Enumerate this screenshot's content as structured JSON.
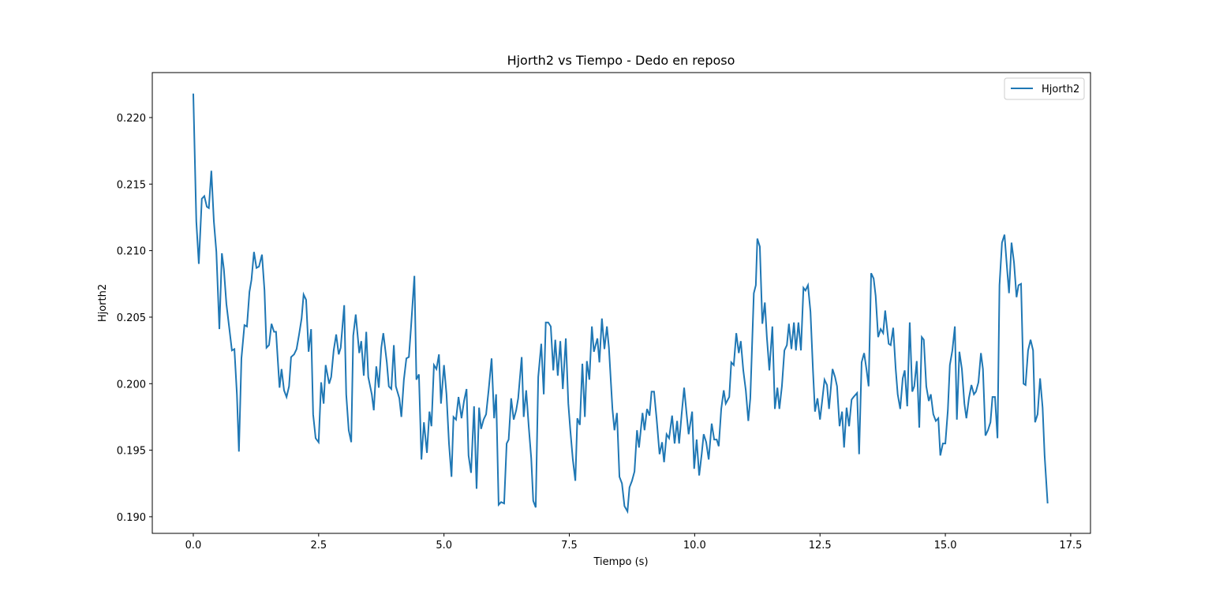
{
  "chart_data": {
    "type": "line",
    "title": "Hjorth2 vs Tiempo - Dedo en reposo",
    "xlabel": "Tiempo (s)",
    "ylabel": "Hjorth2",
    "legend": "upper right",
    "xlim": [
      -0.818,
      17.895
    ],
    "ylim": [
      0.18875,
      0.22338
    ],
    "xticks": [
      {
        "value": 0,
        "label": "0.0"
      },
      2.5,
      {
        "value": 5,
        "label": "5.0"
      },
      7.5,
      {
        "value": 10,
        "label": "10.0"
      },
      12.5,
      {
        "value": 15,
        "label": "15.0"
      },
      17.5
    ],
    "yticks": [
      {
        "value": 0.19,
        "label": "0.190"
      },
      0.195,
      {
        "value": 0.2,
        "label": "0.200"
      },
      0.205,
      {
        "value": 0.21,
        "label": "0.210"
      },
      0.215,
      {
        "value": 0.22,
        "label": "0.220"
      }
    ],
    "x": [
      0,
      0.06,
      0.11,
      0.17,
      0.22,
      0.27,
      0.31,
      0.36,
      0.41,
      0.46,
      0.52,
      0.57,
      0.61,
      0.66,
      0.72,
      0.77,
      0.82,
      0.87,
      0.91,
      0.96,
      1.02,
      1.07,
      1.12,
      1.16,
      1.21,
      1.26,
      1.31,
      1.37,
      1.42,
      1.46,
      1.51,
      1.56,
      1.61,
      1.65,
      1.72,
      1.76,
      1.81,
      1.86,
      1.91,
      1.95,
      2.01,
      2.06,
      2.11,
      2.16,
      2.2,
      2.25,
      2.3,
      2.35,
      2.39,
      2.44,
      2.5,
      2.55,
      2.6,
      2.64,
      2.71,
      2.75,
      2.8,
      2.85,
      2.9,
      2.94,
      3.01,
      3.05,
      3.1,
      3.15,
      3.19,
      3.24,
      3.31,
      3.35,
      3.4,
      3.45,
      3.49,
      3.56,
      3.6,
      3.65,
      3.7,
      3.75,
      3.79,
      3.86,
      3.9,
      3.95,
      4,
      4.04,
      4.11,
      4.15,
      4.2,
      4.25,
      4.3,
      4.34,
      4.41,
      4.45,
      4.5,
      4.55,
      4.6,
      4.66,
      4.71,
      4.75,
      4.8,
      4.85,
      4.9,
      4.94,
      5,
      5.05,
      5.1,
      5.15,
      5.19,
      5.24,
      5.29,
      5.35,
      5.4,
      5.45,
      5.49,
      5.54,
      5.6,
      5.65,
      5.7,
      5.74,
      5.79,
      5.84,
      5.89,
      5.95,
      6,
      6.04,
      6.09,
      6.14,
      6.2,
      6.25,
      6.29,
      6.34,
      6.39,
      6.44,
      6.48,
      6.55,
      6.59,
      6.64,
      6.69,
      6.74,
      6.78,
      6.83,
      6.88,
      6.94,
      6.99,
      7.03,
      7.08,
      7.13,
      7.18,
      7.22,
      7.27,
      7.32,
      7.37,
      7.43,
      7.48,
      7.52,
      7.57,
      7.62,
      7.66,
      7.71,
      7.76,
      7.81,
      7.85,
      7.9,
      7.95,
      7.99,
      8.06,
      8.1,
      8.15,
      8.2,
      8.25,
      8.29,
      8.36,
      8.4,
      8.45,
      8.5,
      8.55,
      8.6,
      8.66,
      8.7,
      8.75,
      8.8,
      8.85,
      8.89,
      8.96,
      9,
      9.05,
      9.1,
      9.14,
      9.19,
      9.24,
      9.3,
      9.35,
      9.39,
      9.44,
      9.49,
      9.55,
      9.6,
      9.65,
      9.69,
      9.74,
      9.79,
      9.84,
      9.88,
      9.95,
      9.99,
      10.04,
      10.09,
      10.14,
      10.18,
      10.23,
      10.28,
      10.34,
      10.39,
      10.44,
      10.48,
      10.53,
      10.58,
      10.62,
      10.69,
      10.73,
      10.78,
      10.83,
      10.88,
      10.92,
      10.97,
      11.02,
      11.07,
      11.11,
      11.18,
      11.22,
      11.25,
      11.3,
      11.35,
      11.4,
      11.44,
      11.49,
      11.55,
      11.6,
      11.65,
      11.69,
      11.74,
      11.79,
      11.84,
      11.88,
      11.93,
      11.98,
      12.02,
      12.07,
      12.12,
      12.17,
      12.21,
      12.26,
      12.31,
      12.36,
      12.4,
      12.45,
      12.5,
      12.54,
      12.59,
      12.64,
      12.68,
      12.75,
      12.8,
      12.84,
      12.89,
      12.94,
      12.98,
      13.03,
      13.08,
      13.13,
      13.17,
      13.24,
      13.28,
      13.33,
      13.38,
      13.43,
      13.47,
      13.52,
      13.57,
      13.61,
      13.66,
      13.71,
      13.76,
      13.8,
      13.87,
      13.91,
      13.96,
      14.01,
      14.05,
      14.1,
      14.15,
      14.19,
      14.24,
      14.29,
      14.34,
      14.38,
      14.43,
      14.48,
      14.53,
      14.57,
      14.62,
      14.67,
      14.71,
      14.76,
      14.81,
      14.86,
      14.9,
      14.95,
      15,
      15.05,
      15.09,
      15.14,
      15.19,
      15.23,
      15.28,
      15.33,
      15.38,
      15.42,
      15.47,
      15.52,
      15.57,
      15.61,
      15.66,
      15.71,
      15.75,
      15.8,
      15.85,
      15.9,
      15.94,
      15.99,
      16.04,
      16.08,
      16.13,
      16.18,
      16.23,
      16.27,
      16.32,
      16.37,
      16.42,
      16.46,
      16.51,
      16.56,
      16.6,
      16.65,
      16.7,
      16.75,
      16.79,
      16.84,
      16.89,
      16.94,
      16.98,
      17.04
    ],
    "series": [
      {
        "name": "Hjorth2",
        "color": "#1f77b4",
        "values": [
          0.2218,
          0.2122,
          0.209,
          0.2139,
          0.2141,
          0.2133,
          0.2132,
          0.216,
          0.2122,
          0.2099,
          0.2041,
          0.2098,
          0.2086,
          0.206,
          0.2041,
          0.2025,
          0.2026,
          0.1992,
          0.1949,
          0.2019,
          0.2044,
          0.2043,
          0.2069,
          0.2078,
          0.2099,
          0.2087,
          0.2088,
          0.2097,
          0.207,
          0.2027,
          0.2029,
          0.2045,
          0.2039,
          0.2039,
          0.1997,
          0.2011,
          0.1995,
          0.199,
          0.1998,
          0.202,
          0.2022,
          0.2026,
          0.2037,
          0.2049,
          0.2067,
          0.2063,
          0.2024,
          0.2041,
          0.1977,
          0.1959,
          0.1956,
          0.2001,
          0.1985,
          0.2014,
          0.2,
          0.2005,
          0.2025,
          0.2037,
          0.2022,
          0.2027,
          0.2059,
          0.1992,
          0.1965,
          0.1956,
          0.2036,
          0.2052,
          0.2023,
          0.2032,
          0.2006,
          0.2039,
          0.2005,
          0.1992,
          0.198,
          0.2013,
          0.1997,
          0.2027,
          0.2038,
          0.2016,
          0.1998,
          0.1996,
          0.2029,
          0.1998,
          0.1989,
          0.1975,
          0.2003,
          0.2019,
          0.202,
          0.2041,
          0.2081,
          0.2003,
          0.2007,
          0.1943,
          0.1971,
          0.1948,
          0.1979,
          0.1968,
          0.2014,
          0.2011,
          0.2022,
          0.1985,
          0.2014,
          0.1992,
          0.1955,
          0.193,
          0.1975,
          0.1973,
          0.199,
          0.1974,
          0.1987,
          0.1996,
          0.1946,
          0.1933,
          0.1983,
          0.1921,
          0.1982,
          0.1966,
          0.1973,
          0.1977,
          0.1995,
          0.2019,
          0.1974,
          0.1992,
          0.1909,
          0.1911,
          0.191,
          0.1955,
          0.1958,
          0.1989,
          0.1973,
          0.198,
          0.1989,
          0.202,
          0.1975,
          0.1995,
          0.1968,
          0.1944,
          0.1912,
          0.1907,
          0.2005,
          0.203,
          0.1992,
          0.2046,
          0.2046,
          0.2043,
          0.201,
          0.2033,
          0.2006,
          0.2032,
          0.1996,
          0.2034,
          0.1985,
          0.1965,
          0.1943,
          0.1927,
          0.1974,
          0.1969,
          0.2015,
          0.1975,
          0.2017,
          0.2003,
          0.2043,
          0.2024,
          0.2034,
          0.2016,
          0.2049,
          0.2026,
          0.2043,
          0.2027,
          0.1981,
          0.1965,
          0.1978,
          0.193,
          0.1925,
          0.1908,
          0.1904,
          0.1922,
          0.1927,
          0.1934,
          0.1965,
          0.1952,
          0.1978,
          0.1965,
          0.1981,
          0.1976,
          0.1994,
          0.1994,
          0.1974,
          0.1947,
          0.1956,
          0.1941,
          0.1962,
          0.1959,
          0.1976,
          0.1955,
          0.1972,
          0.1955,
          0.1977,
          0.1997,
          0.1977,
          0.1962,
          0.1979,
          0.1936,
          0.1958,
          0.1931,
          0.1947,
          0.1962,
          0.1956,
          0.1943,
          0.197,
          0.1958,
          0.1958,
          0.1953,
          0.1981,
          0.1995,
          0.1985,
          0.199,
          0.2016,
          0.2014,
          0.2038,
          0.2023,
          0.2032,
          0.201,
          0.1995,
          0.1972,
          0.1989,
          0.2068,
          0.2074,
          0.2109,
          0.2103,
          0.2045,
          0.2061,
          0.2035,
          0.201,
          0.2043,
          0.1981,
          0.1997,
          0.1981,
          0.1998,
          0.2025,
          0.2029,
          0.2045,
          0.2026,
          0.2046,
          0.2025,
          0.2046,
          0.2025,
          0.2072,
          0.207,
          0.2074,
          0.2054,
          0.201,
          0.1979,
          0.1989,
          0.1973,
          0.1986,
          0.2003,
          0.1999,
          0.1981,
          0.2011,
          0.2005,
          0.1998,
          0.1968,
          0.1979,
          0.1952,
          0.1982,
          0.1968,
          0.1988,
          0.199,
          0.1993,
          0.1947,
          0.2016,
          0.2023,
          0.201,
          0.1998,
          0.2083,
          0.2079,
          0.2066,
          0.2035,
          0.2041,
          0.2038,
          0.2055,
          0.203,
          0.2029,
          0.2042,
          0.2011,
          0.1992,
          0.1981,
          0.2004,
          0.201,
          0.1983,
          0.2046,
          0.1994,
          0.1998,
          0.2017,
          0.1967,
          0.2035,
          0.2033,
          0.1998,
          0.1987,
          0.1992,
          0.1977,
          0.1972,
          0.1974,
          0.1946,
          0.1955,
          0.1955,
          0.198,
          0.2014,
          0.2025,
          0.2043,
          0.1973,
          0.2024,
          0.2011,
          0.1985,
          0.1974,
          0.1989,
          0.1999,
          0.1992,
          0.1994,
          0.2001,
          0.2023,
          0.2011,
          0.1961,
          0.1965,
          0.1971,
          0.199,
          0.199,
          0.1959,
          0.2074,
          0.2106,
          0.2112,
          0.2087,
          0.2068,
          0.2106,
          0.2091,
          0.2065,
          0.2074,
          0.2075,
          0.2,
          0.1999,
          0.2025,
          0.2033,
          0.2025,
          0.1971,
          0.1977,
          0.2004,
          0.1982,
          0.1946,
          0.191
        ]
      }
    ]
  }
}
